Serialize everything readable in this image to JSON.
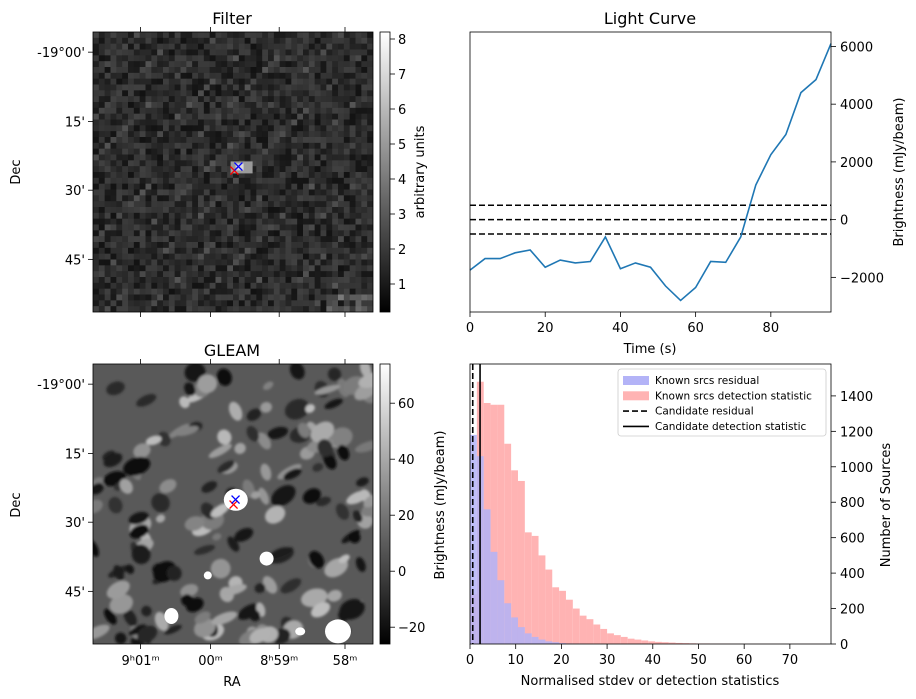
{
  "filter_panel": {
    "title": "Filter",
    "ylabel": "Dec",
    "dec_ticks": [
      "-19°00'",
      "15'",
      "30'",
      "45'"
    ],
    "colorbar_label": "arbitrary units",
    "colorbar_ticks": [
      "1",
      "2",
      "3",
      "4",
      "5",
      "6",
      "7",
      "8"
    ],
    "colorbar_range": [
      0.2,
      8.2
    ]
  },
  "gleam_panel": {
    "title": "GLEAM",
    "ylabel": "Dec",
    "xlabel": "RA",
    "dec_ticks": [
      "-19°00'",
      "15'",
      "30'",
      "45'"
    ],
    "ra_ticks": [
      "9ʰ01ᵐ",
      "00ᵐ",
      "8ʰ59ᵐ",
      "58ᵐ"
    ],
    "colorbar_ticks": [
      "60",
      "40",
      "20",
      "0",
      "−20"
    ],
    "colorbar_range": [
      -26,
      74
    ]
  },
  "lightcurve_panel": {
    "title": "Light Curve",
    "xlabel": "Time (s)",
    "ylabel": "Brightness (mJy/beam)",
    "x_ticks": [
      "0",
      "20",
      "40",
      "60",
      "80"
    ],
    "y_ticks": [
      "6000",
      "4000",
      "2000",
      "0",
      "−2000"
    ]
  },
  "histogram_panel": {
    "xlabel": "Normalised stdev or detection statistics",
    "left_ylabel": "Brightness (mJy/beam)",
    "right_ylabel": "Number of Sources",
    "x_ticks": [
      "0",
      "10",
      "20",
      "30",
      "40",
      "50",
      "60",
      "70"
    ],
    "y_ticks": [
      "1400",
      "1200",
      "1000",
      "800",
      "600",
      "400",
      "200",
      "0"
    ],
    "legend": [
      {
        "label": "Known srcs residual",
        "color": "#b3b3f7",
        "kind": "patch"
      },
      {
        "label": "Known srcs detection statistic",
        "color": "#ffb3b3",
        "kind": "patch"
      },
      {
        "label": "Candidate residual",
        "color": "#000000",
        "kind": "dashed"
      },
      {
        "label": "Candidate detection statistic",
        "color": "#000000",
        "kind": "solid"
      }
    ]
  },
  "chart_data": [
    {
      "type": "line",
      "title": "Light Curve",
      "xlabel": "Time (s)",
      "ylabel": "Brightness (mJy/beam)",
      "xlim": [
        0,
        96
      ],
      "ylim": [
        -3200,
        6500
      ],
      "series": [
        {
          "color": "#1f77b4",
          "x": [
            0,
            4,
            8,
            12,
            16,
            20,
            24,
            28,
            32,
            36,
            40,
            44,
            48,
            52,
            56,
            60,
            64,
            68,
            72,
            76,
            80,
            84,
            88,
            92,
            96
          ],
          "y": [
            -1750,
            -1350,
            -1350,
            -1150,
            -1050,
            -1650,
            -1400,
            -1500,
            -1450,
            -600,
            -1700,
            -1500,
            -1650,
            -2300,
            -2800,
            -2350,
            -1450,
            -1480,
            -600,
            1200,
            2250,
            2950,
            4400,
            4850,
            6100
          ]
        }
      ],
      "hlines": [
        {
          "y": 500,
          "style": "dashed",
          "color": "#000000"
        },
        {
          "y": 0,
          "style": "dashed",
          "color": "#000000"
        },
        {
          "y": -500,
          "style": "dashed",
          "color": "#000000"
        }
      ]
    },
    {
      "type": "bar",
      "xlabel": "Normalised stdev or detection statistics",
      "right_ylabel": "Number of Sources",
      "xlim": [
        0,
        79
      ],
      "ylim": [
        0,
        1580
      ],
      "bin_width": 1.5,
      "series": [
        {
          "name": "Known srcs residual",
          "color": "#b3b3f7",
          "bin_start": 0,
          "values": [
            1180,
            1060,
            760,
            520,
            360,
            230,
            150,
            95,
            60,
            40,
            25,
            15,
            10,
            5,
            3,
            2,
            1
          ]
        },
        {
          "name": "Known srcs detection statistic",
          "color": "#ffb3b3",
          "bin_start": 0,
          "values": [
            280,
            1480,
            1360,
            1350,
            1350,
            1130,
            980,
            920,
            630,
            610,
            500,
            420,
            320,
            300,
            250,
            200,
            160,
            140,
            110,
            85,
            60,
            50,
            40,
            30,
            25,
            20,
            15,
            12,
            10,
            8,
            6,
            5,
            4,
            3,
            3,
            2,
            2,
            2,
            1,
            1,
            1,
            1,
            1,
            1,
            1,
            1,
            1,
            1,
            1,
            1,
            1,
            1
          ]
        }
      ],
      "vlines": [
        {
          "name": "Candidate residual",
          "x": 0.6,
          "style": "dashed",
          "color": "#000000"
        },
        {
          "name": "Candidate detection statistic",
          "x": 2.2,
          "style": "solid",
          "color": "#000000"
        }
      ]
    },
    {
      "type": "heatmap",
      "title": "Filter",
      "colormap": "gray",
      "markers": [
        {
          "symbol": "x",
          "color": "#ff0000"
        },
        {
          "symbol": "x",
          "color": "#0000ff"
        }
      ]
    },
    {
      "type": "heatmap",
      "title": "GLEAM",
      "colormap": "gray",
      "markers": [
        {
          "symbol": "x",
          "color": "#ff0000"
        },
        {
          "symbol": "x",
          "color": "#0000ff"
        }
      ]
    }
  ]
}
